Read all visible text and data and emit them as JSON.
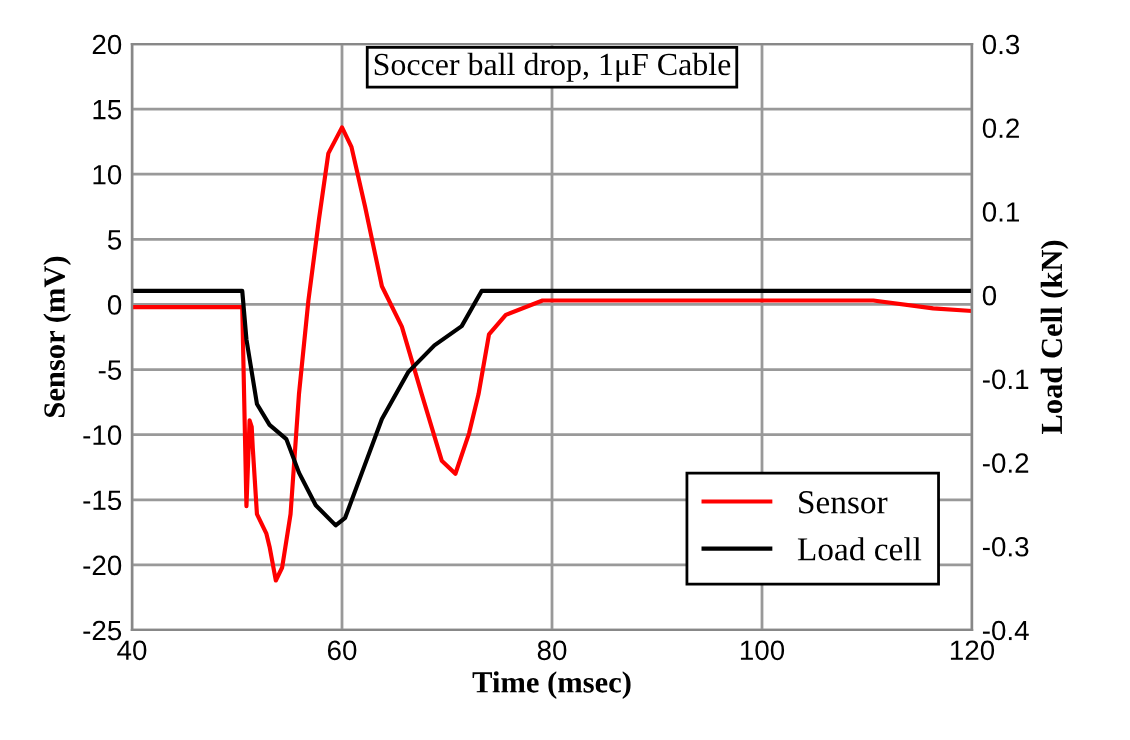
{
  "chart_data": {
    "type": "line",
    "title": "Soccer ball drop, 1μF Cable",
    "xlabel": "Time (msec)",
    "ylabel": "Sensor (mV)",
    "y2label": "Load Cell (kN)",
    "series": [
      {
        "name": "Sensor",
        "color": "#ff0000",
        "axis": "y",
        "x": [
          40,
          50.5,
          50.9,
          51.2,
          51.4,
          51.5,
          51.9,
          52.8,
          53.1,
          53.7,
          54.3,
          55.1,
          55.9,
          56.8,
          57.8,
          58.7,
          60.0,
          60.9,
          62.2,
          63.8,
          65.7,
          67.6,
          69.5,
          70.8,
          72.1,
          73.0,
          74.0,
          75.6,
          79.1,
          90,
          100,
          110.6,
          116.3,
          119.9
        ],
        "values": [
          -0.2,
          -0.2,
          -15.5,
          -8.9,
          -9.4,
          -11,
          -16.1,
          -17.6,
          -18.6,
          -21.2,
          -20.2,
          -16.1,
          -6.9,
          0.3,
          6.5,
          11.6,
          13.6,
          12.1,
          7.5,
          1.4,
          -1.7,
          -6.9,
          -12.0,
          -13.0,
          -9.9,
          -6.9,
          -2.3,
          -0.8,
          0.3,
          0.3,
          0.3,
          0.3,
          -0.3,
          -0.5
        ]
      },
      {
        "name": "Load cell",
        "color": "#000000",
        "axis": "y2",
        "x": [
          40,
          45,
          50.5,
          50.9,
          51.9,
          53.1,
          54.7,
          55.9,
          57.5,
          59.4,
          60.3,
          61.9,
          63.8,
          66.3,
          68.8,
          71.4,
          73.3,
          76.4,
          90,
          105,
          120
        ],
        "values": [
          0.005,
          0.005,
          0.005,
          -0.053,
          -0.13,
          -0.155,
          -0.172,
          -0.212,
          -0.251,
          -0.275,
          -0.266,
          -0.212,
          -0.148,
          -0.092,
          -0.06,
          -0.037,
          0.005,
          0.005,
          0.005,
          0.005,
          0.005
        ]
      }
    ],
    "xlim": [
      40,
      120
    ],
    "xticks": [
      40,
      60,
      80,
      100,
      120
    ],
    "ylim": [
      -25,
      20
    ],
    "yticks": [
      -25,
      -20,
      -15,
      -10,
      -5,
      0,
      5,
      10,
      15,
      20
    ],
    "y2lim": [
      -0.4,
      0.3
    ],
    "y2ticks": [
      -0.4,
      -0.3,
      -0.2,
      -0.1,
      0,
      0.1,
      0.2,
      0.3
    ],
    "grid": true,
    "legend": "lower right",
    "marker": "none",
    "line_style": "solid"
  }
}
